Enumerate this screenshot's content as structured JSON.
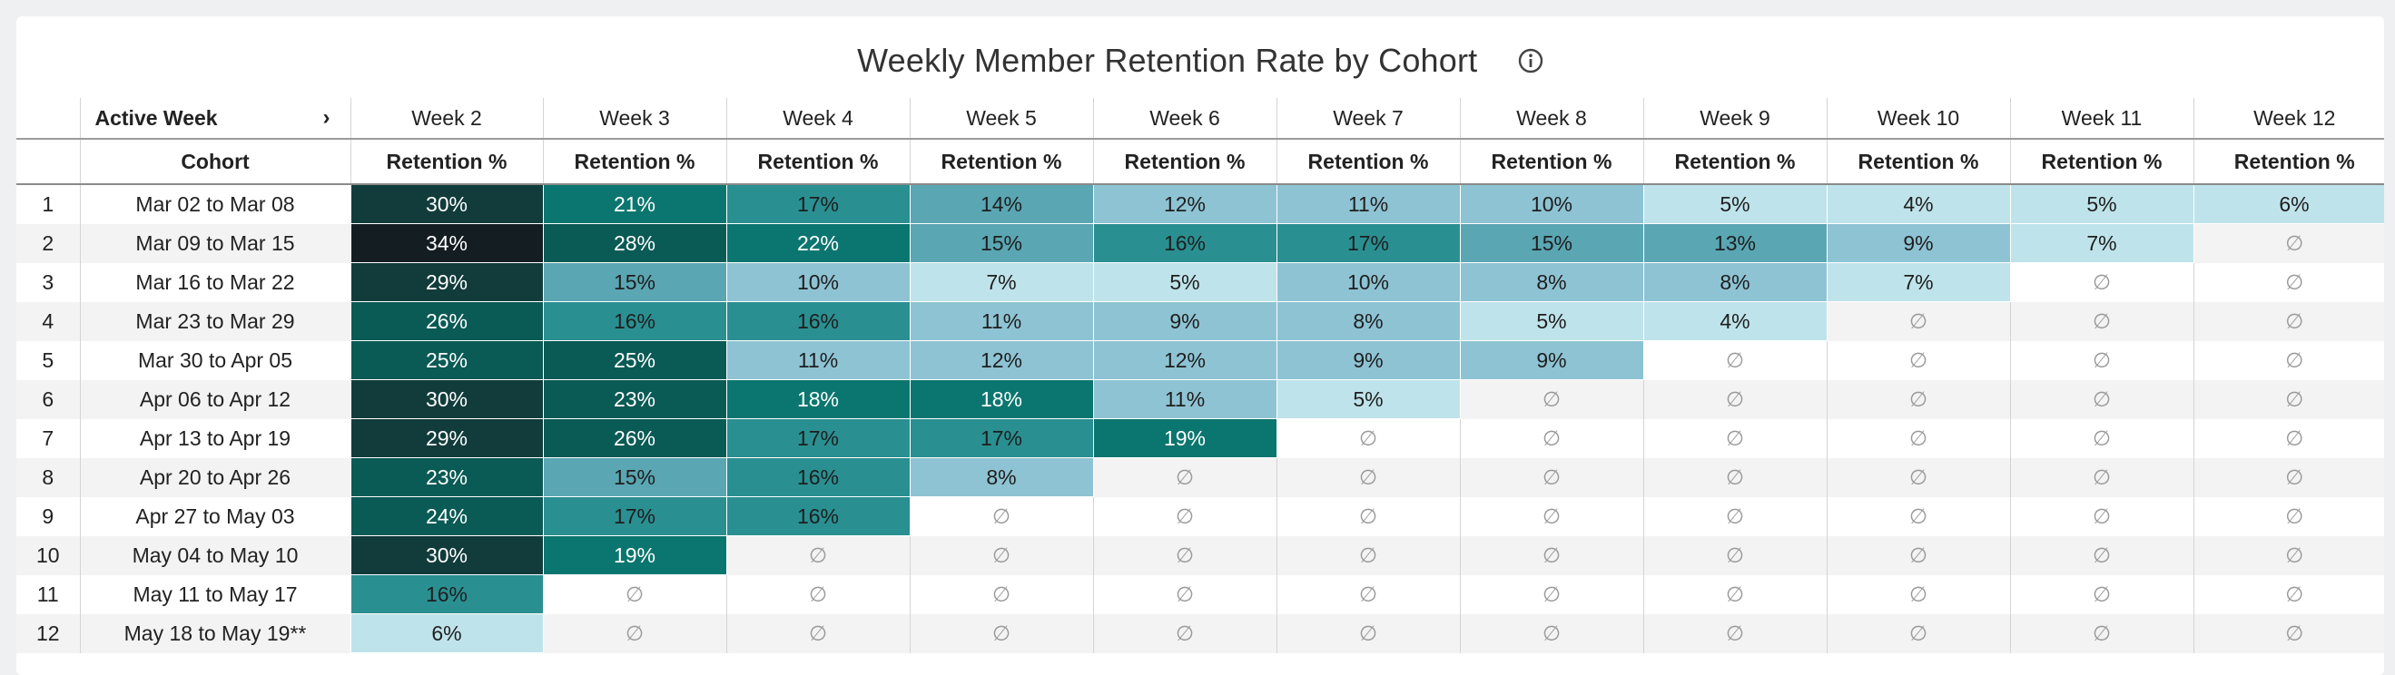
{
  "title": "Weekly Member Retention Rate by Cohort",
  "header": {
    "active_week_label": "Active Week",
    "cohort_label": "Cohort",
    "retention_label": "Retention %",
    "empty_symbol": "∅"
  },
  "chart_data": {
    "type": "heatmap",
    "title": "Weekly Member Retention Rate by Cohort",
    "columns": [
      "Week 2",
      "Week 3",
      "Week 4",
      "Week 5",
      "Week 6",
      "Week 7",
      "Week 8",
      "Week 9",
      "Week 10",
      "Week 11",
      "Week 12"
    ],
    "rows": [
      {
        "index": "1",
        "cohort": "Mar 02 to Mar 08",
        "values": [
          30,
          21,
          17,
          14,
          12,
          11,
          10,
          5,
          4,
          5,
          6
        ]
      },
      {
        "index": "2",
        "cohort": "Mar 09 to Mar 15",
        "values": [
          34,
          28,
          22,
          15,
          16,
          17,
          15,
          13,
          9,
          7,
          null
        ]
      },
      {
        "index": "3",
        "cohort": "Mar 16 to Mar 22",
        "values": [
          29,
          15,
          10,
          7,
          5,
          10,
          8,
          8,
          7,
          null,
          null
        ]
      },
      {
        "index": "4",
        "cohort": "Mar 23 to Mar 29",
        "values": [
          26,
          16,
          16,
          11,
          9,
          8,
          5,
          4,
          null,
          null,
          null
        ]
      },
      {
        "index": "5",
        "cohort": "Mar 30 to Apr 05",
        "values": [
          25,
          25,
          11,
          12,
          12,
          9,
          9,
          null,
          null,
          null,
          null
        ]
      },
      {
        "index": "6",
        "cohort": "Apr 06 to Apr 12",
        "values": [
          30,
          23,
          18,
          18,
          11,
          5,
          null,
          null,
          null,
          null,
          null
        ]
      },
      {
        "index": "7",
        "cohort": "Apr 13 to Apr 19",
        "values": [
          29,
          26,
          17,
          17,
          19,
          null,
          null,
          null,
          null,
          null,
          null
        ]
      },
      {
        "index": "8",
        "cohort": "Apr 20 to Apr 26",
        "values": [
          23,
          15,
          16,
          8,
          null,
          null,
          null,
          null,
          null,
          null,
          null
        ]
      },
      {
        "index": "9",
        "cohort": "Apr 27 to May 03",
        "values": [
          24,
          17,
          16,
          null,
          null,
          null,
          null,
          null,
          null,
          null,
          null
        ]
      },
      {
        "index": "10",
        "cohort": "May 04 to May 10",
        "values": [
          30,
          19,
          null,
          null,
          null,
          null,
          null,
          null,
          null,
          null,
          null
        ]
      },
      {
        "index": "11",
        "cohort": "May 11 to May 17",
        "values": [
          16,
          null,
          null,
          null,
          null,
          null,
          null,
          null,
          null,
          null,
          null
        ]
      },
      {
        "index": "12",
        "cohort": "May 18 to May 19**",
        "values": [
          6,
          null,
          null,
          null,
          null,
          null,
          null,
          null,
          null,
          null,
          null
        ]
      }
    ],
    "value_suffix": "%",
    "color_scale": [
      "#bfe3ea",
      "#8ec3d3",
      "#5aa6b3",
      "#2a8f91",
      "#0b766f",
      "#0a5a55",
      "#123c3c",
      "#141d22"
    ]
  }
}
